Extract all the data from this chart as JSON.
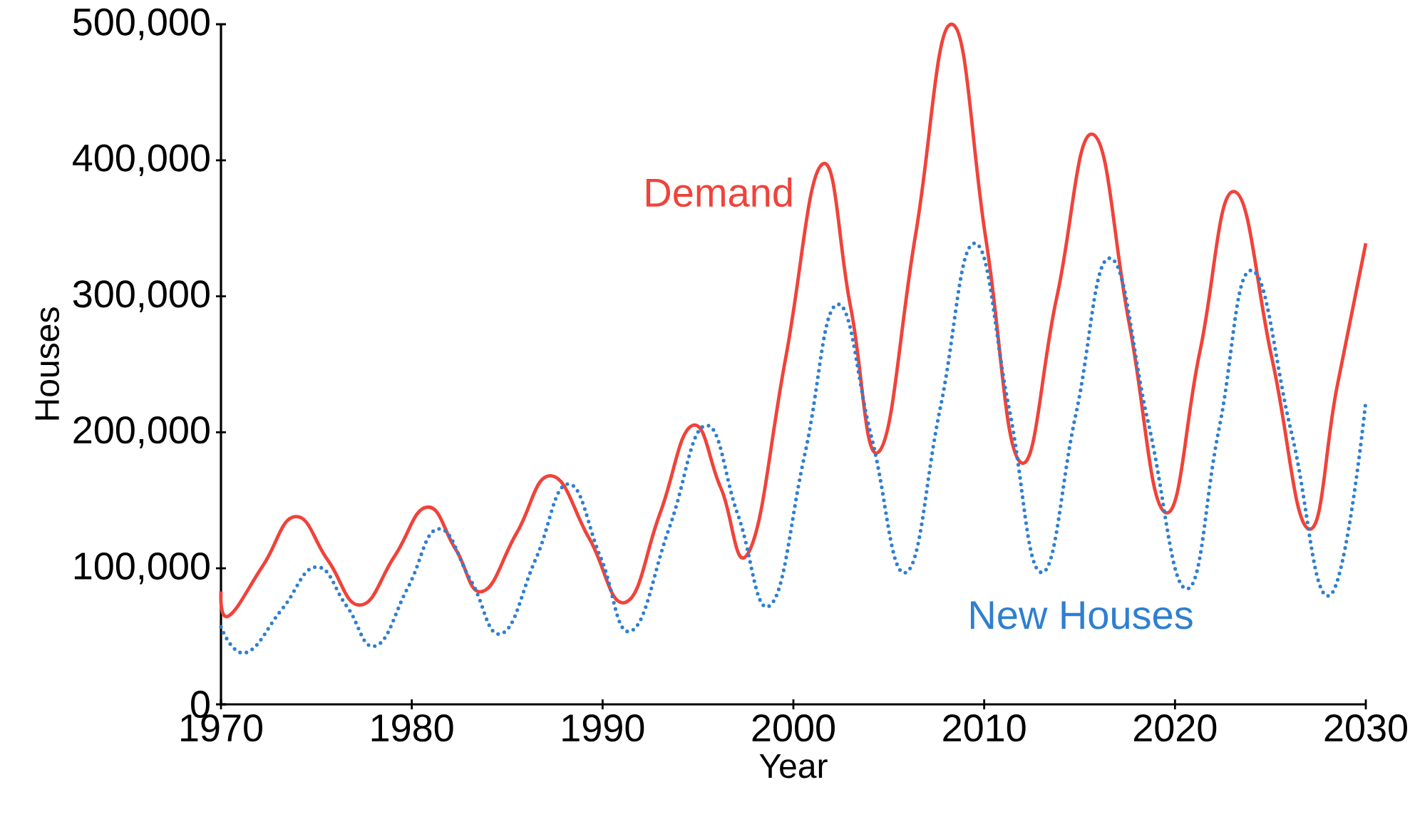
{
  "chart_data": {
    "type": "line",
    "xlabel": "Year",
    "ylabel": "Houses",
    "xlim": [
      1970,
      2030
    ],
    "ylim": [
      0,
      500000
    ],
    "xticks": [
      1970,
      1980,
      1990,
      2000,
      2010,
      2020,
      2030
    ],
    "yticks": [
      0,
      {
        "value": 100000,
        "label": "100,000"
      },
      {
        "value": 200000,
        "label": "200,000"
      },
      {
        "value": 300000,
        "label": "300,000"
      },
      {
        "value": 400000,
        "label": "400,000"
      },
      {
        "value": 500000,
        "label": "500,000"
      }
    ],
    "series": [
      {
        "name": "Demand",
        "color": "#f0433a",
        "line_style": "solid",
        "x": [
          1970,
          1970.4,
          1972.2,
          1973.9,
          1975.6,
          1977.3,
          1979.1,
          1980.8,
          1982.3,
          1983.7,
          1985.5,
          1987.3,
          1989.3,
          1991.2,
          1993.0,
          1994.7,
          1996.2,
          1997.7,
          1999.6,
          2001.5,
          2003.0,
          2004.5,
          2006.4,
          2008.3,
          2010.1,
          2011.9,
          2013.8,
          2015.7,
          2017.6,
          2019.5,
          2021.3,
          2023.1,
          2025.1,
          2027.0,
          2028.5,
          2030
        ],
        "values": [
          83000,
          65000,
          102000,
          138000,
          106000,
          73000,
          109000,
          145000,
          114000,
          83000,
          126000,
          168000,
          122000,
          75000,
          140000,
          205000,
          159000,
          113000,
          255000,
          397000,
          292000,
          186000,
          345000,
          500000,
          341000,
          178000,
          299000,
          419000,
          280000,
          141000,
          259000,
          377000,
          253000,
          129000,
          234000,
          339000
        ]
      },
      {
        "name": "New Houses",
        "color": "#2f7fd0",
        "line_style": "dotted",
        "x": [
          1970,
          1971.3,
          1973.2,
          1975.0,
          1976.6,
          1978.1,
          1979.8,
          1981.4,
          1983.1,
          1984.7,
          1986.5,
          1988.2,
          1989.9,
          1991.5,
          1993.5,
          1995.4,
          1997.1,
          1998.8,
          2000.6,
          2002.3,
          2004.1,
          2005.9,
          2007.7,
          2009.5,
          2011.3,
          2013.0,
          2014.8,
          2016.6,
          2018.6,
          2020.6,
          2022.3,
          2024.0,
          2026.1,
          2028.1,
          2030
        ],
        "values": [
          57000,
          38000,
          70000,
          101000,
          72000,
          43000,
          86000,
          129000,
          91000,
          52000,
          107000,
          162000,
          108000,
          54000,
          130000,
          205000,
          139000,
          73000,
          184000,
          294000,
          196000,
          97000,
          218000,
          339000,
          218000,
          97000,
          213000,
          328000,
          207000,
          85000,
          202000,
          319000,
          200000,
          80000,
          223000
        ]
      }
    ]
  }
}
